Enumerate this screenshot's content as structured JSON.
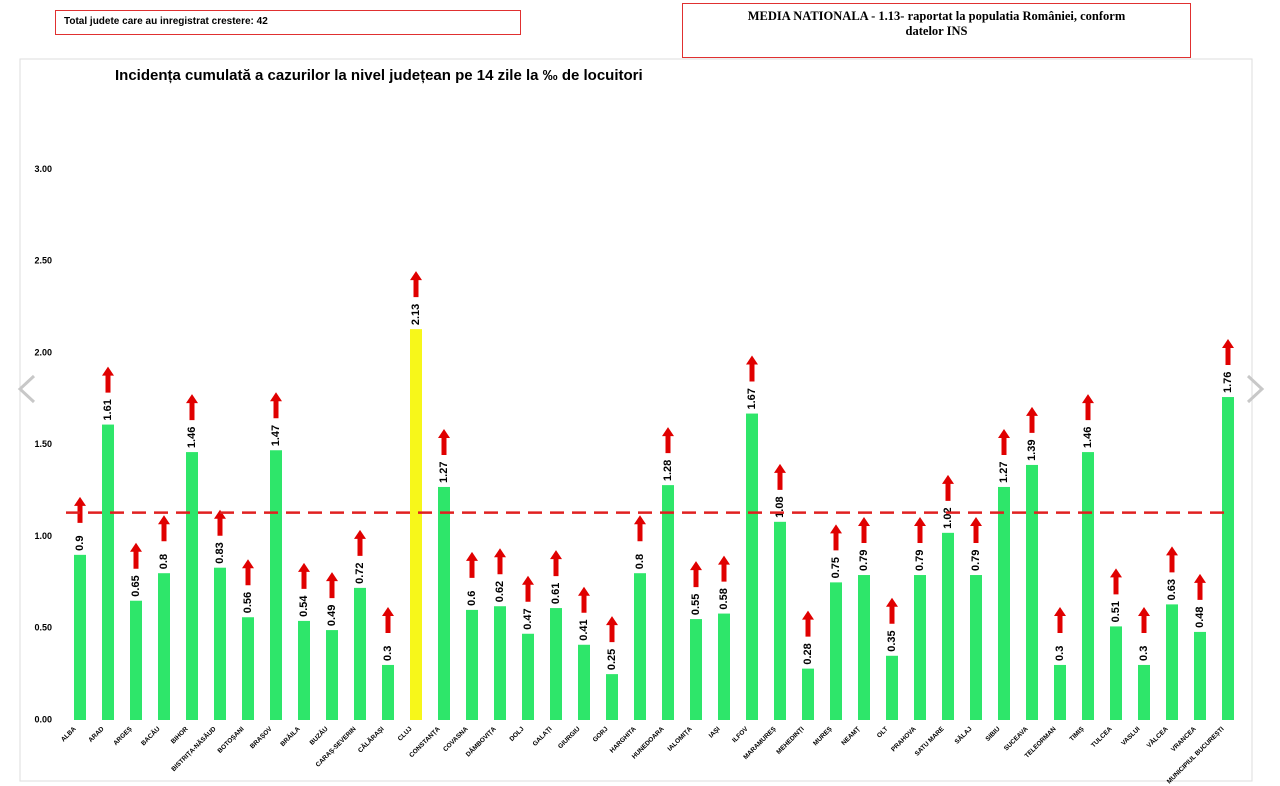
{
  "header": {
    "increase_note": "Total judete care au inregistrat crestere: 42",
    "national_note": "MEDIA NATIONALA - 1.13-  raportat la populatia României, conform datelor INS"
  },
  "chart_data": {
    "type": "bar",
    "title": "Incidența cumulată a cazurilor la nivel județean pe 14 zile la ‰ de locuitori",
    "categories": [
      "ALBA",
      "ARAD",
      "ARGEȘ",
      "BACĂU",
      "BIHOR",
      "BISTRIȚA-NĂSĂUD",
      "BOTOȘANI",
      "BRAȘOV",
      "BRĂILA",
      "BUZĂU",
      "CARAȘ-SEVERIN",
      "CĂLĂRAȘI",
      "CLUJ",
      "CONSTANȚA",
      "COVASNA",
      "DÂMBOVIȚA",
      "DOLJ",
      "GALAȚI",
      "GIURGIU",
      "GORJ",
      "HARGHITA",
      "HUNEDOARA",
      "IALOMIȚA",
      "IAȘI",
      "ILFOV",
      "MARAMUREȘ",
      "MEHEDINȚI",
      "MUREȘ",
      "NEAMȚ",
      "OLT",
      "PRAHOVA",
      "SATU MARE",
      "SĂLAJ",
      "SIBIU",
      "SUCEAVA",
      "TELEORMAN",
      "TIMIȘ",
      "TULCEA",
      "VASLUI",
      "VÂLCEA",
      "VRANCEA",
      "MUNICIPIUL BUCUREȘTI"
    ],
    "values": [
      0.9,
      1.61,
      0.65,
      0.8,
      1.46,
      0.83,
      0.56,
      1.47,
      0.54,
      0.49,
      0.72,
      0.3,
      2.13,
      1.27,
      0.6,
      0.62,
      0.47,
      0.61,
      0.41,
      0.25,
      0.8,
      1.28,
      0.55,
      0.58,
      1.67,
      1.08,
      0.28,
      0.75,
      0.79,
      0.35,
      0.79,
      1.02,
      0.79,
      1.27,
      1.39,
      0.3,
      1.46,
      0.51,
      0.3,
      0.63,
      0.48,
      1.76
    ],
    "colors": [
      "#2ee66a",
      "#2ee66a",
      "#2ee66a",
      "#2ee66a",
      "#2ee66a",
      "#2ee66a",
      "#2ee66a",
      "#2ee66a",
      "#2ee66a",
      "#2ee66a",
      "#2ee66a",
      "#2ee66a",
      "#f7f71a",
      "#2ee66a",
      "#2ee66a",
      "#2ee66a",
      "#2ee66a",
      "#2ee66a",
      "#2ee66a",
      "#2ee66a",
      "#2ee66a",
      "#2ee66a",
      "#2ee66a",
      "#2ee66a",
      "#2ee66a",
      "#2ee66a",
      "#2ee66a",
      "#2ee66a",
      "#2ee66a",
      "#2ee66a",
      "#2ee66a",
      "#2ee66a",
      "#2ee66a",
      "#2ee66a",
      "#2ee66a",
      "#2ee66a",
      "#2ee66a",
      "#2ee66a",
      "#2ee66a",
      "#2ee66a",
      "#2ee66a",
      "#2ee66a"
    ],
    "reference_line": 1.13,
    "reference_color": "#e02020",
    "arrow_color": "#e00000",
    "ylim": [
      0,
      3.5
    ],
    "yticks": [
      {
        "value": 0,
        "label": "0.00"
      },
      {
        "value": 0.5,
        "label": "0.50"
      },
      {
        "value": 1,
        "label": "1.00"
      },
      {
        "value": 1.5,
        "label": "1.50"
      },
      {
        "value": 2,
        "label": "2.00"
      },
      {
        "value": 2.5,
        "label": "2.50"
      },
      {
        "value": 3,
        "label": "3.00"
      }
    ],
    "grid": false
  }
}
